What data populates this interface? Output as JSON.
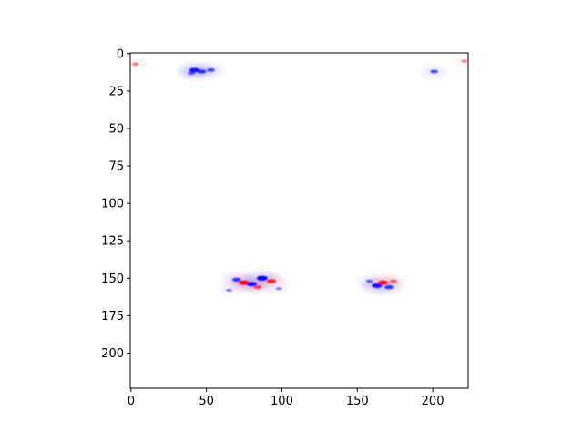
{
  "chart_data": {
    "type": "heatmap",
    "title": "",
    "xlabel": "",
    "ylabel": "",
    "x_range": [
      -0.5,
      223.5
    ],
    "y_range": [
      -0.5,
      223.5
    ],
    "y_inverted": true,
    "x_ticks": [
      0,
      50,
      100,
      150,
      200
    ],
    "y_ticks": [
      0,
      25,
      50,
      75,
      100,
      125,
      150,
      175,
      200
    ],
    "x_tick_labels": [
      "0",
      "50",
      "100",
      "150",
      "200"
    ],
    "y_tick_labels": [
      "0",
      "25",
      "50",
      "75",
      "100",
      "125",
      "150",
      "175",
      "200"
    ],
    "colormap": "bwr",
    "colormap_colors": {
      "negative": "#0000ff",
      "zero": "#ffffff",
      "positive": "#ff0000"
    },
    "features": [
      {
        "x": 75,
        "y": 153,
        "value": 1.0
      },
      {
        "x": 87,
        "y": 150,
        "value": -1.0
      },
      {
        "x": 80,
        "y": 154,
        "value": -0.9
      },
      {
        "x": 93,
        "y": 152,
        "value": 0.8
      },
      {
        "x": 70,
        "y": 151,
        "value": -0.7
      },
      {
        "x": 84,
        "y": 156,
        "value": 0.6
      },
      {
        "x": 65,
        "y": 158,
        "value": -0.35
      },
      {
        "x": 98,
        "y": 157,
        "value": -0.35
      },
      {
        "x": 167,
        "y": 153,
        "value": 0.9
      },
      {
        "x": 163,
        "y": 155,
        "value": -0.9
      },
      {
        "x": 171,
        "y": 156,
        "value": -0.7
      },
      {
        "x": 158,
        "y": 152,
        "value": -0.45
      },
      {
        "x": 174,
        "y": 152,
        "value": 0.5
      },
      {
        "x": 42,
        "y": 11,
        "value": -0.9
      },
      {
        "x": 47,
        "y": 12,
        "value": -0.7
      },
      {
        "x": 53,
        "y": 11,
        "value": -0.6
      },
      {
        "x": 40,
        "y": 13,
        "value": -0.5
      },
      {
        "x": 201,
        "y": 12,
        "value": -0.6
      },
      {
        "x": 3,
        "y": 7,
        "value": 0.4
      },
      {
        "x": 221,
        "y": 5,
        "value": 0.35
      }
    ]
  }
}
